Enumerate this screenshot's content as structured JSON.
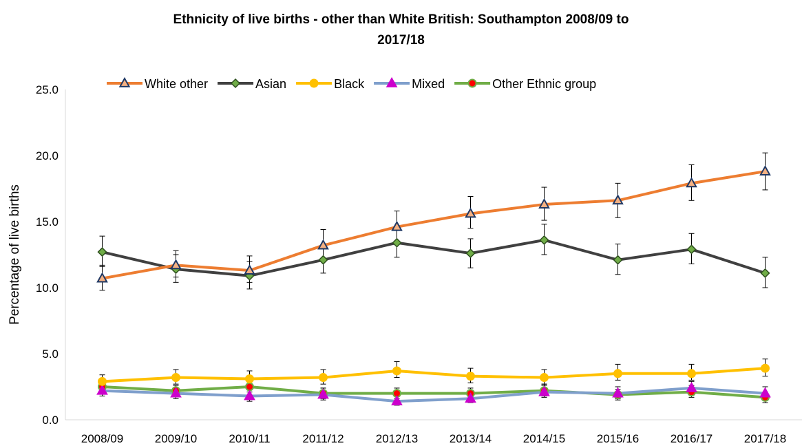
{
  "chart_data": {
    "type": "line",
    "title_line1": "Ethnicity of live births - other than White British: Southampton 2008/09 to",
    "title_line2": "2017/18",
    "xlabel": "",
    "ylabel": "Percentage of live births",
    "ylim": [
      0,
      25
    ],
    "yticks": [
      "0.0",
      "5.0",
      "10.0",
      "15.0",
      "20.0",
      "25.0"
    ],
    "categories": [
      "2008/09",
      "2009/10",
      "2010/11",
      "2011/12",
      "2012/13",
      "2013/14",
      "2014/15",
      "2015/16",
      "2016/17",
      "2017/18"
    ],
    "legend_position": "top",
    "grid": false,
    "series": [
      {
        "name": "White other",
        "color": "#ED7D31",
        "marker": "triangle",
        "marker_fill": "#F4B183",
        "marker_stroke": "#1F3864",
        "values": [
          10.7,
          11.7,
          11.3,
          13.2,
          14.6,
          15.6,
          16.3,
          16.6,
          17.9,
          18.8
        ],
        "err_low": [
          9.8,
          10.8,
          10.4,
          12.2,
          13.5,
          14.5,
          15.1,
          15.3,
          16.6,
          17.4
        ],
        "err_high": [
          11.7,
          12.8,
          12.4,
          14.4,
          15.8,
          16.9,
          17.6,
          17.9,
          19.3,
          20.2
        ]
      },
      {
        "name": "Asian",
        "color": "#404040",
        "marker": "diamond",
        "marker_fill": "#70AD47",
        "marker_stroke": "#2E4F1F",
        "values": [
          12.7,
          11.4,
          10.9,
          12.1,
          13.4,
          12.6,
          13.6,
          12.1,
          12.9,
          11.1
        ],
        "err_low": [
          11.6,
          10.4,
          9.9,
          11.1,
          12.3,
          11.5,
          12.5,
          11.0,
          11.8,
          10.0
        ],
        "err_high": [
          13.9,
          12.5,
          12.0,
          13.2,
          14.6,
          13.7,
          14.8,
          13.3,
          14.1,
          12.3
        ]
      },
      {
        "name": "Black",
        "color": "#FFC000",
        "marker": "circle",
        "marker_fill": "#FFC000",
        "marker_stroke": "#FFC000",
        "values": [
          2.9,
          3.2,
          3.1,
          3.2,
          3.7,
          3.3,
          3.2,
          3.5,
          3.5,
          3.9
        ],
        "err_low": [
          2.4,
          2.7,
          2.6,
          2.7,
          3.2,
          2.8,
          2.7,
          3.0,
          3.0,
          3.3
        ],
        "err_high": [
          3.4,
          3.8,
          3.7,
          3.8,
          4.4,
          3.9,
          3.8,
          4.2,
          4.2,
          4.6
        ]
      },
      {
        "name": "Mixed",
        "color": "#7F9FCC",
        "marker": "triangle",
        "marker_fill": "#CC00CC",
        "marker_stroke": "#CC00CC",
        "values": [
          2.2,
          2.0,
          1.8,
          1.9,
          1.4,
          1.6,
          2.1,
          2.0,
          2.4,
          2.0
        ],
        "err_low": [
          1.8,
          1.6,
          1.4,
          1.5,
          1.1,
          1.3,
          1.7,
          1.6,
          2.0,
          1.6
        ],
        "err_high": [
          2.7,
          2.4,
          2.3,
          2.4,
          1.9,
          2.1,
          2.6,
          2.5,
          2.9,
          2.5
        ]
      },
      {
        "name": "Other Ethnic group",
        "color": "#70AD47",
        "marker": "circle",
        "marker_fill": "#FF0000",
        "marker_stroke": "#70AD47",
        "values": [
          2.5,
          2.2,
          2.5,
          2.0,
          2.0,
          2.0,
          2.2,
          1.9,
          2.1,
          1.7
        ],
        "err_low": [
          2.1,
          1.8,
          2.1,
          1.6,
          1.6,
          1.6,
          1.8,
          1.5,
          1.7,
          1.3
        ],
        "err_high": [
          3.0,
          2.6,
          3.0,
          2.4,
          2.4,
          2.4,
          2.7,
          2.3,
          2.6,
          2.1
        ]
      }
    ]
  }
}
